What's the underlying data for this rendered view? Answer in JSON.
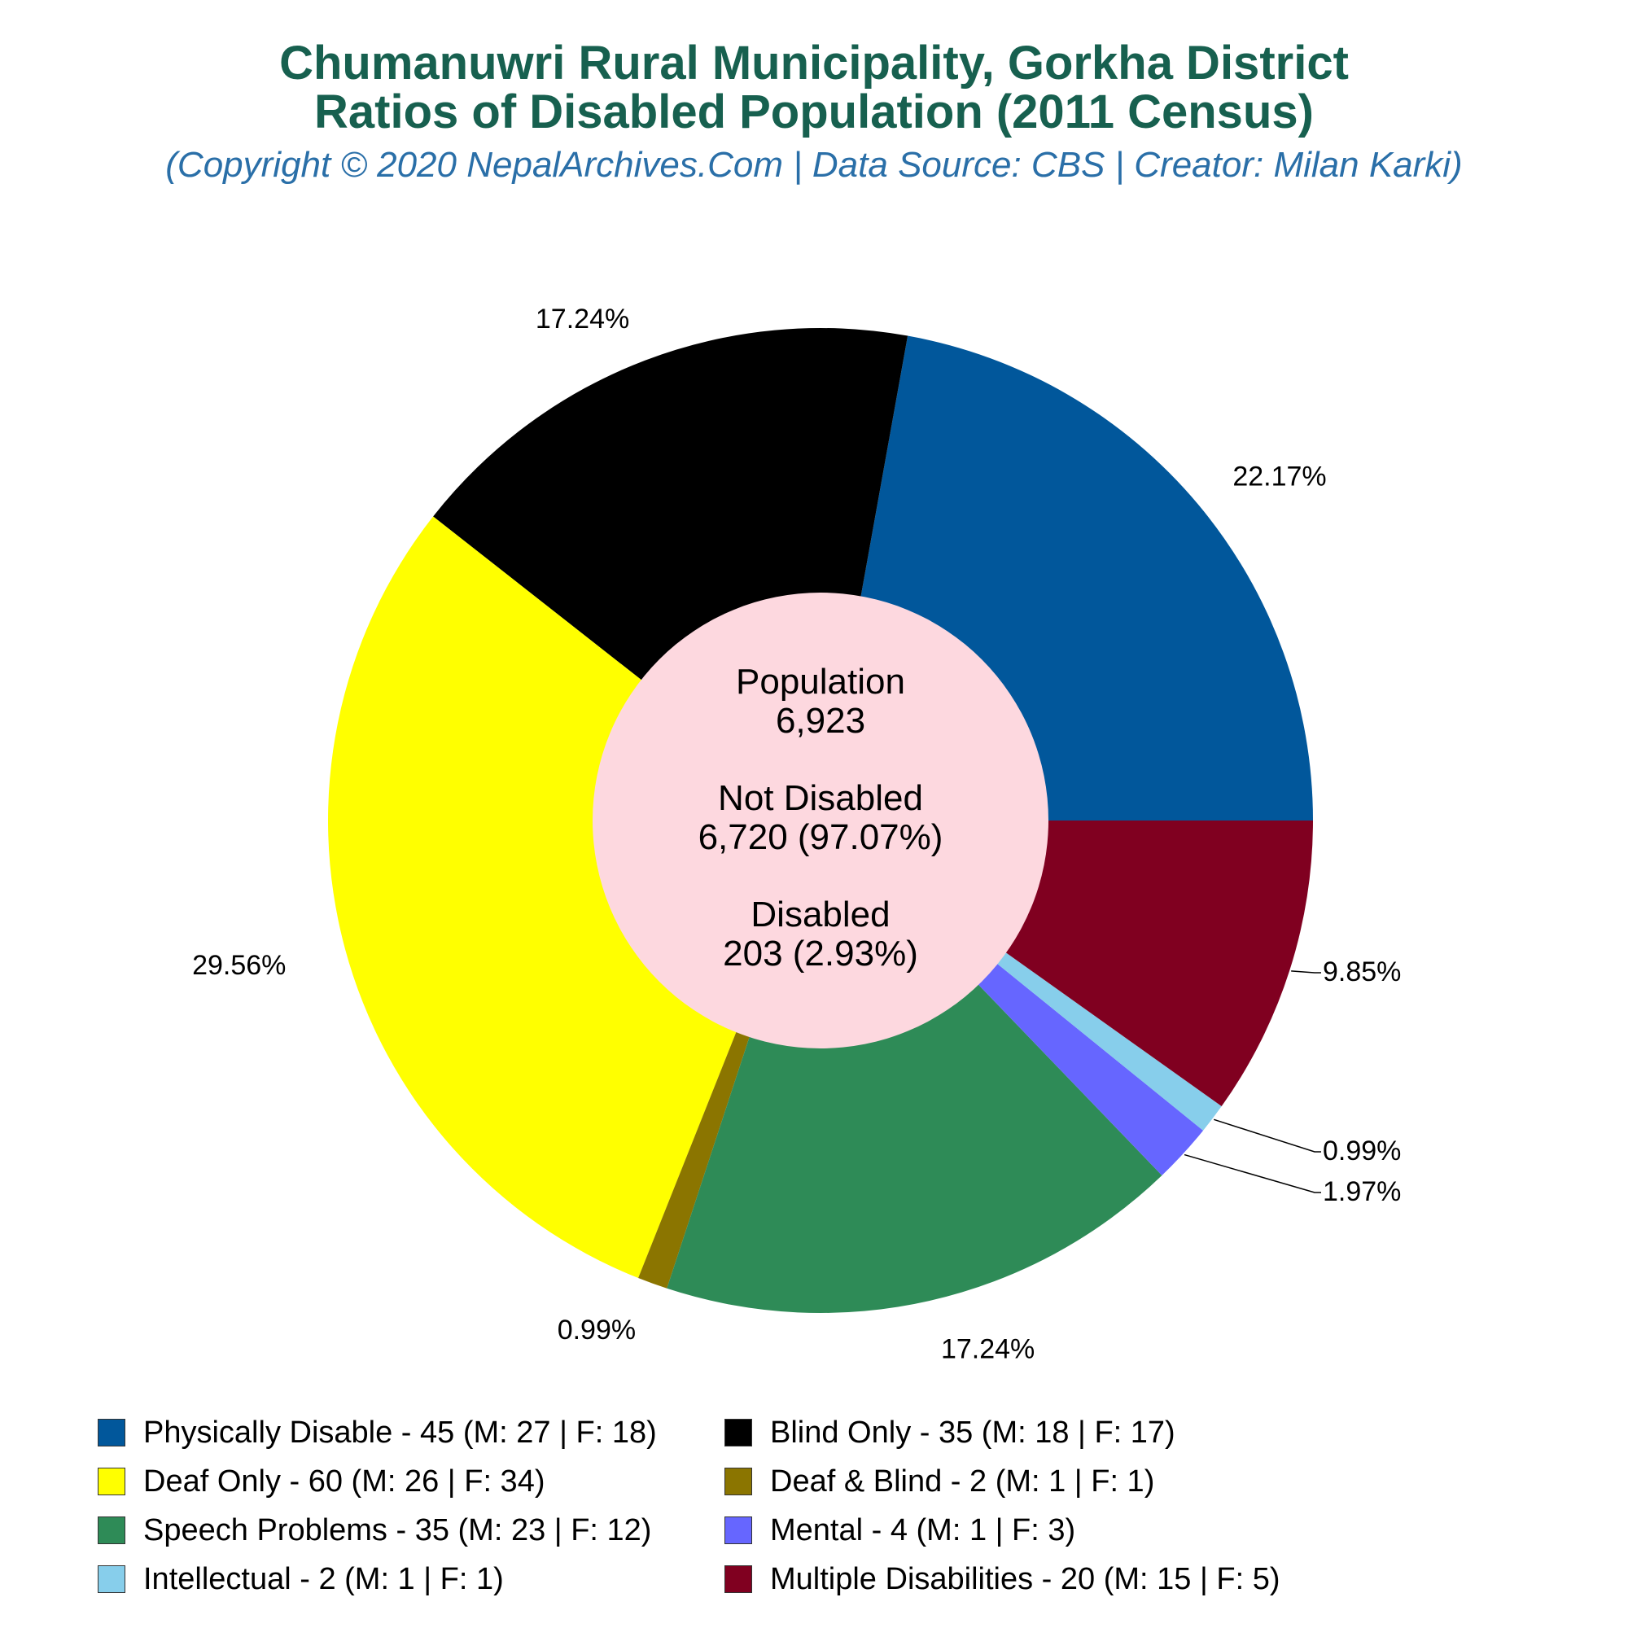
{
  "title_line1": "Chumanuwri Rural Municipality, Gorkha District",
  "title_line2": "Ratios of Disabled Population (2011 Census)",
  "subtitle": "(Copyright © 2020 NepalArchives.Com | Data Source: CBS | Creator: Milan Karki)",
  "center": {
    "population_label": "Population",
    "population_value": "6,923",
    "not_disabled_label": "Not Disabled",
    "not_disabled_value": "6,720 (97.07%)",
    "disabled_label": "Disabled",
    "disabled_value": "203 (2.93%)"
  },
  "chart_data": {
    "type": "pie",
    "variant": "donut",
    "start_angle": "3 o'clock",
    "direction": "counter-clockwise",
    "legend_position": "bottom",
    "slices": [
      {
        "label": "Physically Disable",
        "value": 45,
        "percent": "22.17%",
        "color": "#01579b"
      },
      {
        "label": "Blind Only",
        "value": 35,
        "percent": "17.24%",
        "color": "#000000"
      },
      {
        "label": "Deaf Only",
        "value": 60,
        "percent": "29.56%",
        "color": "#ffff00"
      },
      {
        "label": "Deaf & Blind",
        "value": 2,
        "percent": "0.99%",
        "color": "#8b7500"
      },
      {
        "label": "Speech Problems",
        "value": 35,
        "percent": "17.24%",
        "color": "#2e8b57"
      },
      {
        "label": "Mental",
        "value": 4,
        "percent": "1.97%",
        "color": "#6666ff"
      },
      {
        "label": "Intellectual",
        "value": 2,
        "percent": "0.99%",
        "color": "#87ceeb"
      },
      {
        "label": "Multiple Disabilities",
        "value": 20,
        "percent": "9.85%",
        "color": "#800020"
      }
    ],
    "legend": [
      {
        "text": "Physically Disable - 45 (M: 27 | F: 18)",
        "color": "#01579b"
      },
      {
        "text": "Blind Only - 35 (M: 18 | F: 17)",
        "color": "#000000"
      },
      {
        "text": "Deaf Only - 60 (M: 26 | F: 34)",
        "color": "#ffff00"
      },
      {
        "text": "Deaf & Blind - 2 (M: 1 | F: 1)",
        "color": "#8b7500"
      },
      {
        "text": "Speech Problems - 35 (M: 23 | F: 12)",
        "color": "#2e8b57"
      },
      {
        "text": "Mental - 4 (M: 1 | F: 3)",
        "color": "#6666ff"
      },
      {
        "text": "Intellectual - 2 (M: 1 | F: 1)",
        "color": "#87ceeb"
      },
      {
        "text": "Multiple Disabilities - 20 (M: 15 | F: 5)",
        "color": "#800020"
      }
    ],
    "center_color": "#fdd8df"
  }
}
